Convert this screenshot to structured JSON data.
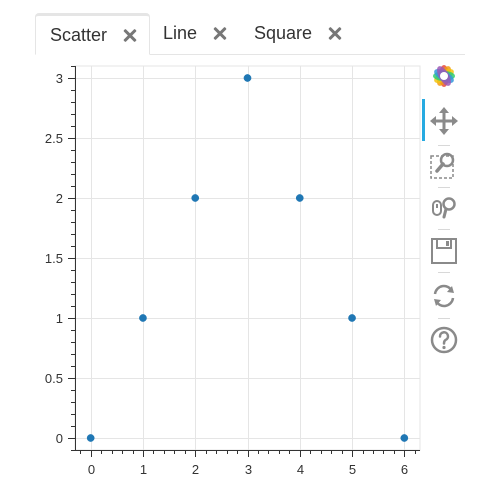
{
  "tabs": [
    {
      "label": "Scatter",
      "active": true
    },
    {
      "label": "Line",
      "active": false
    },
    {
      "label": "Square",
      "active": false
    }
  ],
  "toolbar": {
    "tools": [
      "bokeh-logo-icon",
      "pan-icon",
      "box-zoom-icon",
      "wheel-zoom-icon",
      "save-icon",
      "reset-icon",
      "help-icon"
    ],
    "active_tool": "pan-icon",
    "accent_color": "#26aae1"
  },
  "chart_data": {
    "type": "scatter",
    "x": [
      0,
      1,
      2,
      3,
      4,
      5,
      6
    ],
    "y": [
      0,
      1,
      2,
      3,
      2,
      1,
      0
    ],
    "xlim": [
      -0.3,
      6.3
    ],
    "ylim": [
      -0.1,
      3.1
    ],
    "xticks": [
      0,
      1,
      2,
      3,
      4,
      5,
      6
    ],
    "yticks": [
      0,
      0.5,
      1,
      1.5,
      2,
      2.5,
      3
    ],
    "xtick_labels": [
      "0",
      "1",
      "2",
      "3",
      "4",
      "5",
      "6"
    ],
    "ytick_labels": [
      "0",
      "0.5",
      "1",
      "1.5",
      "2",
      "2.5",
      "3"
    ],
    "grid": true,
    "marker_color": "#1f77b4",
    "title": "",
    "xlabel": "",
    "ylabel": ""
  }
}
